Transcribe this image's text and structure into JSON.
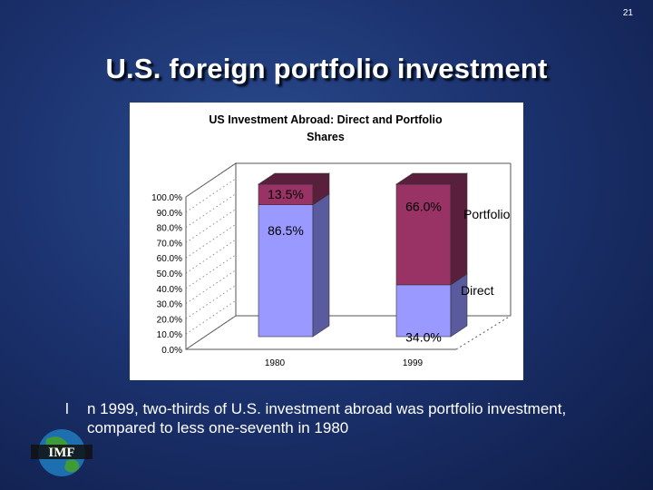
{
  "slide": {
    "number": "21",
    "title": "U.S. foreign portfolio investment",
    "bullet_mark": "l",
    "bullet_text": "n 1999, two-thirds of U.S. investment abroad was portfolio investment, compared to less one-seventh in 1980",
    "logo_text": "IMF"
  },
  "chart_data": {
    "type": "bar",
    "stacked": true,
    "three_d": true,
    "title": "US Investment Abroad:  Direct and Portfolio Shares",
    "categories": [
      "1980",
      "1999"
    ],
    "series": [
      {
        "name": "Direct",
        "values": [
          86.5,
          34.0
        ],
        "labels": [
          "86.5%",
          "34.0%"
        ],
        "color": "#9999ff",
        "side_color": "#5a5a9e"
      },
      {
        "name": "Portfolio",
        "values": [
          13.5,
          66.0
        ],
        "labels": [
          "13.5%",
          "66.0%"
        ],
        "color": "#993366",
        "side_color": "#5a1f3c"
      }
    ],
    "y_ticks": [
      "0.0%",
      "10.0%",
      "20.0%",
      "30.0%",
      "40.0%",
      "50.0%",
      "60.0%",
      "70.0%",
      "80.0%",
      "90.0%",
      "100.0%"
    ],
    "ylim": [
      0,
      100
    ],
    "legend_position": "inline-right",
    "grid": false
  }
}
